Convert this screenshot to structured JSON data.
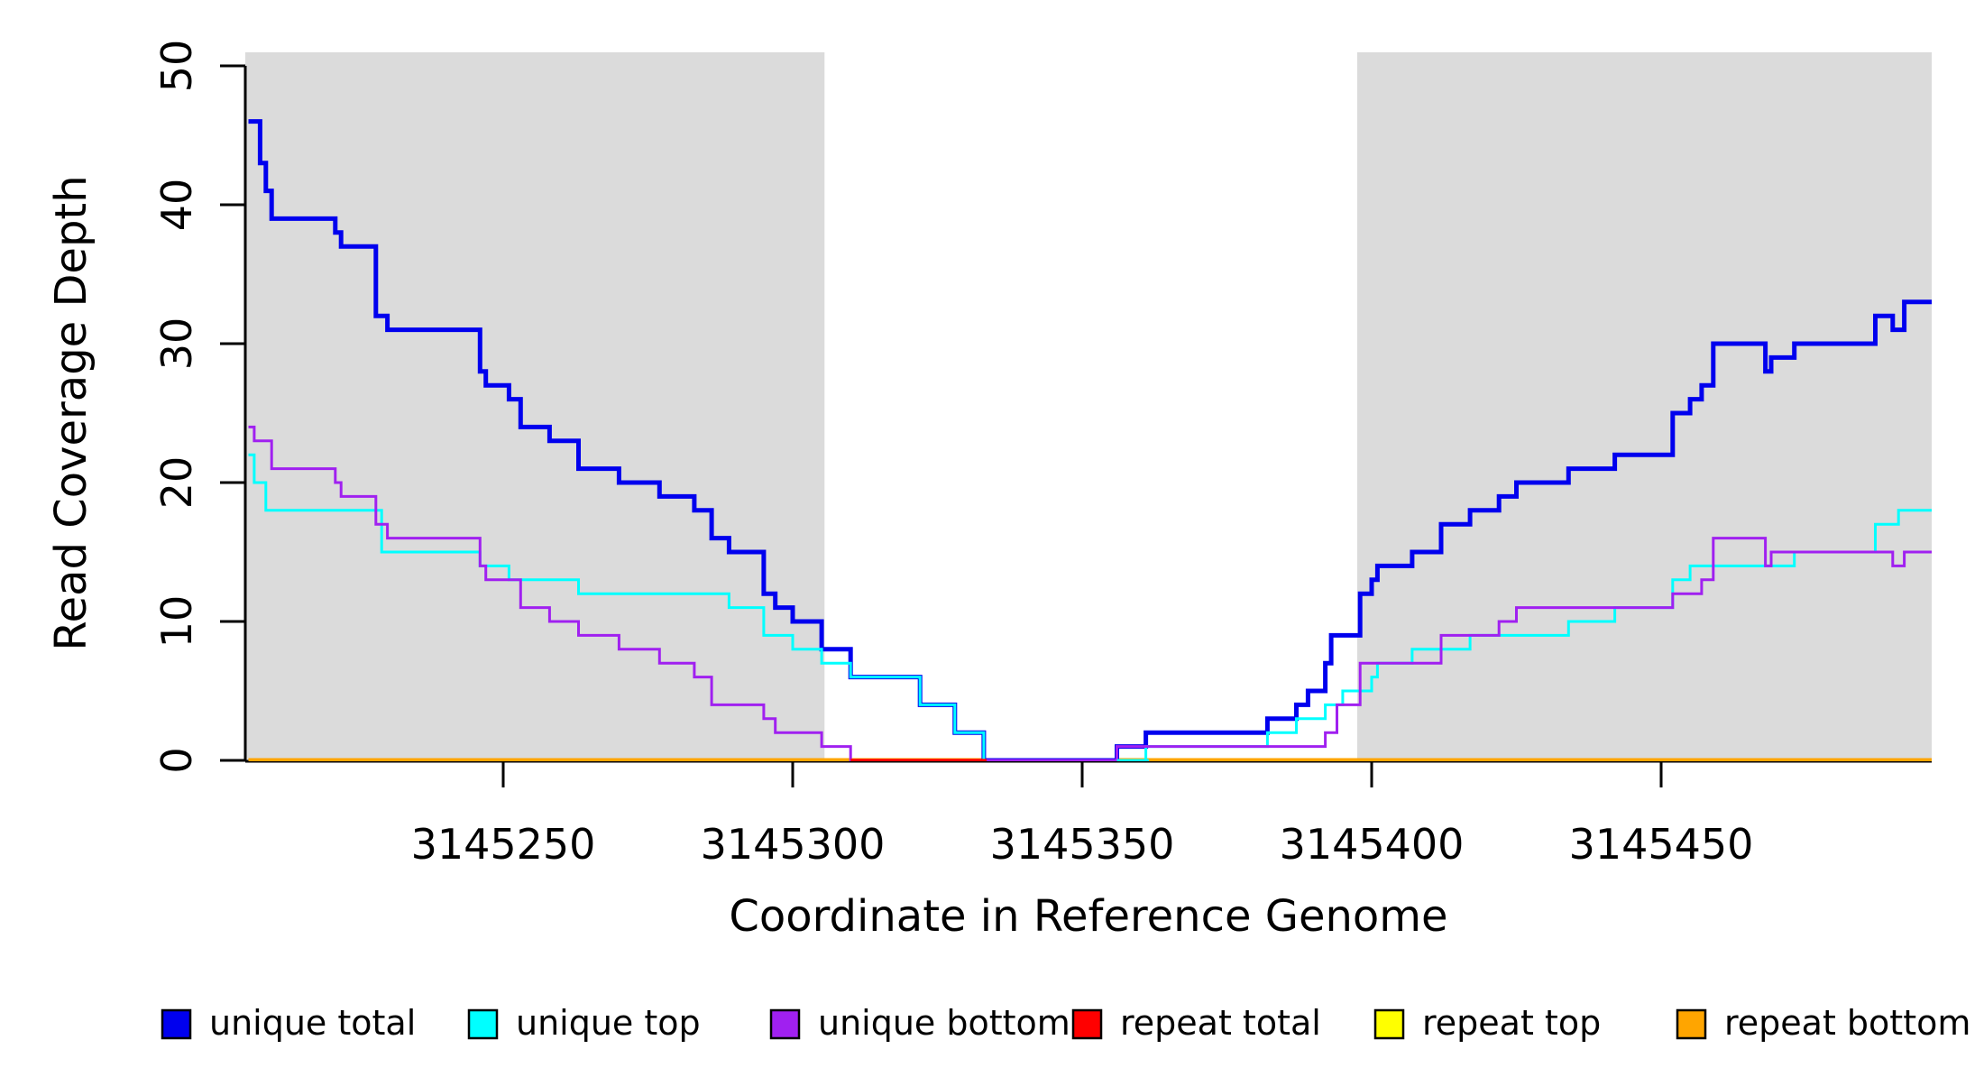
{
  "chart_data": {
    "type": "line",
    "subtype": "step-after",
    "title": "",
    "xlabel": "Coordinate in Reference Genome",
    "ylabel": "Read Coverage Depth",
    "xlim": [
      3145205,
      3145497
    ],
    "ylim": [
      0,
      50
    ],
    "x_ticks": [
      3145250,
      3145300,
      3145350,
      3145400,
      3145450
    ],
    "y_ticks": [
      0,
      10,
      20,
      30,
      40,
      50
    ],
    "grid": "off",
    "background_color": "#ffffff",
    "shaded_regions": [
      {
        "name": "left-unique-region",
        "from": 3145205,
        "to": 3145305.5,
        "color": "#DBDBDB"
      },
      {
        "name": "right-unique-region",
        "from": 3145397.5,
        "to": 3145497,
        "color": "#DBDBDB"
      }
    ],
    "series": [
      {
        "name": "unique total",
        "color": "#0000EE",
        "linewidth": 5,
        "points": [
          [
            3145206,
            46
          ],
          [
            3145208,
            43
          ],
          [
            3145209,
            41
          ],
          [
            3145210,
            39
          ],
          [
            3145221,
            38
          ],
          [
            3145222,
            37
          ],
          [
            3145228,
            32
          ],
          [
            3145230,
            31
          ],
          [
            3145246,
            28
          ],
          [
            3145247,
            27
          ],
          [
            3145251,
            26
          ],
          [
            3145253,
            24
          ],
          [
            3145258,
            23
          ],
          [
            3145263,
            21
          ],
          [
            3145270,
            20
          ],
          [
            3145277,
            19
          ],
          [
            3145283,
            18
          ],
          [
            3145286,
            16
          ],
          [
            3145289,
            15
          ],
          [
            3145295,
            12
          ],
          [
            3145297,
            11
          ],
          [
            3145300,
            10
          ],
          [
            3145305,
            8
          ],
          [
            3145310,
            6
          ],
          [
            3145322,
            4
          ],
          [
            3145328,
            2
          ],
          [
            3145333,
            0
          ],
          [
            3145356,
            1
          ],
          [
            3145361,
            2
          ],
          [
            3145382,
            3
          ],
          [
            3145387,
            4
          ],
          [
            3145389,
            5
          ],
          [
            3145392,
            7
          ],
          [
            3145393,
            9
          ],
          [
            3145398,
            12
          ],
          [
            3145400,
            13
          ],
          [
            3145401,
            14
          ],
          [
            3145407,
            15
          ],
          [
            3145412,
            17
          ],
          [
            3145417,
            18
          ],
          [
            3145422,
            19
          ],
          [
            3145425,
            20
          ],
          [
            3145434,
            21
          ],
          [
            3145442,
            22
          ],
          [
            3145452,
            25
          ],
          [
            3145455,
            26
          ],
          [
            3145457,
            27
          ],
          [
            3145459,
            30
          ],
          [
            3145468,
            28
          ],
          [
            3145469,
            29
          ],
          [
            3145473,
            30
          ],
          [
            3145487,
            32
          ],
          [
            3145490,
            31
          ],
          [
            3145492,
            33
          ]
        ]
      },
      {
        "name": "unique top",
        "color": "#00FFFF",
        "linewidth": 3,
        "points": [
          [
            3145206,
            22
          ],
          [
            3145207,
            20
          ],
          [
            3145209,
            18
          ],
          [
            3145229,
            15
          ],
          [
            3145246,
            14
          ],
          [
            3145251,
            13
          ],
          [
            3145263,
            12
          ],
          [
            3145289,
            11
          ],
          [
            3145295,
            9
          ],
          [
            3145300,
            8
          ],
          [
            3145305,
            7
          ],
          [
            3145310,
            6
          ],
          [
            3145322,
            4
          ],
          [
            3145328,
            2
          ],
          [
            3145333,
            0
          ],
          [
            3145361,
            1
          ],
          [
            3145382,
            2
          ],
          [
            3145387,
            3
          ],
          [
            3145392,
            4
          ],
          [
            3145395,
            5
          ],
          [
            3145400,
            6
          ],
          [
            3145401,
            7
          ],
          [
            3145407,
            8
          ],
          [
            3145417,
            9
          ],
          [
            3145434,
            10
          ],
          [
            3145442,
            11
          ],
          [
            3145452,
            13
          ],
          [
            3145455,
            14
          ],
          [
            3145473,
            15
          ],
          [
            3145487,
            17
          ],
          [
            3145491,
            18
          ]
        ]
      },
      {
        "name": "unique bottom",
        "color": "#A020F0",
        "linewidth": 3,
        "points": [
          [
            3145206,
            24
          ],
          [
            3145207,
            23
          ],
          [
            3145210,
            21
          ],
          [
            3145221,
            20
          ],
          [
            3145222,
            19
          ],
          [
            3145228,
            17
          ],
          [
            3145230,
            16
          ],
          [
            3145246,
            14
          ],
          [
            3145247,
            13
          ],
          [
            3145253,
            11
          ],
          [
            3145258,
            10
          ],
          [
            3145263,
            9
          ],
          [
            3145270,
            8
          ],
          [
            3145277,
            7
          ],
          [
            3145283,
            6
          ],
          [
            3145286,
            4
          ],
          [
            3145295,
            3
          ],
          [
            3145297,
            2
          ],
          [
            3145305,
            1
          ],
          [
            3145310,
            0
          ],
          [
            3145356,
            1
          ],
          [
            3145392,
            2
          ],
          [
            3145394,
            4
          ],
          [
            3145398,
            7
          ],
          [
            3145412,
            9
          ],
          [
            3145422,
            10
          ],
          [
            3145425,
            11
          ],
          [
            3145452,
            12
          ],
          [
            3145457,
            13
          ],
          [
            3145459,
            16
          ],
          [
            3145468,
            14
          ],
          [
            3145469,
            15
          ],
          [
            3145490,
            14
          ],
          [
            3145492,
            15
          ]
        ]
      },
      {
        "name": "repeat total",
        "color": "#FF0000",
        "linewidth": 3.5,
        "points": [
          [
            3145206,
            0
          ]
        ]
      },
      {
        "name": "repeat top",
        "color": "#FFFF00",
        "linewidth": 3,
        "points": [
          [
            3145206,
            0
          ]
        ]
      },
      {
        "name": "repeat bottom",
        "color": "#FFA500",
        "linewidth": 5,
        "points": [
          [
            3145206,
            0
          ]
        ]
      }
    ],
    "baseline_overlays": [
      {
        "series": "repeat total",
        "color": "#FF0000",
        "from": 3145310,
        "to": 3145333.5,
        "linewidth": 3.5
      },
      {
        "series": "unique bottom",
        "color": "#A020F0",
        "from": 3145333.5,
        "to": 3145356,
        "linewidth": 3
      },
      {
        "series": "unique top",
        "color": "#00FFFF",
        "from": 3145356,
        "to": 3145361.5,
        "linewidth": 3
      }
    ],
    "legend": {
      "position": "bottom",
      "entries": [
        {
          "label": "unique total",
          "color": "#0000EE"
        },
        {
          "label": "unique top",
          "color": "#00FFFF"
        },
        {
          "label": "unique bottom",
          "color": "#A020F0"
        },
        {
          "label": "repeat total",
          "color": "#FF0000"
        },
        {
          "label": "repeat top",
          "color": "#FFFF00"
        },
        {
          "label": "repeat bottom",
          "color": "#FFA500"
        }
      ]
    }
  }
}
